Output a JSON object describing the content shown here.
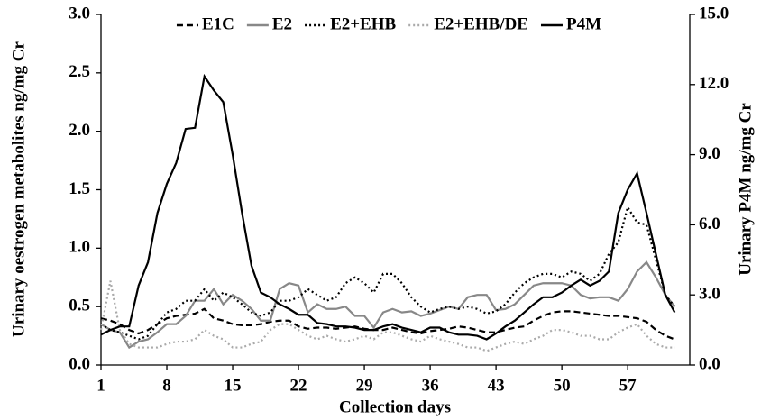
{
  "chart_data": {
    "type": "line",
    "x": [
      1,
      2,
      3,
      4,
      5,
      6,
      7,
      8,
      9,
      10,
      11,
      12,
      13,
      14,
      15,
      16,
      17,
      18,
      19,
      20,
      21,
      22,
      23,
      24,
      25,
      26,
      27,
      28,
      29,
      30,
      31,
      32,
      33,
      34,
      35,
      36,
      37,
      38,
      39,
      40,
      41,
      42,
      43,
      44,
      45,
      46,
      47,
      48,
      49,
      50,
      51,
      52,
      53,
      54,
      55,
      56,
      57,
      58,
      59,
      60,
      61,
      62
    ],
    "xlabel": "Collection days",
    "ylabel": "Urinary oestrogen metabolites ng/mg Cr",
    "y2label": "Urinary P4M ng/mg Cr",
    "xlim": [
      1,
      63.6
    ],
    "xticks": [
      1,
      8,
      15,
      22,
      29,
      36,
      43,
      50,
      57
    ],
    "ylim": [
      0,
      3
    ],
    "yticks": [
      {
        "value": 0,
        "label": "0.0"
      },
      {
        "value": 0.5,
        "label": "0.5"
      },
      {
        "value": 1,
        "label": "1.0"
      },
      {
        "value": 1.5,
        "label": "1.5"
      },
      {
        "value": 2,
        "label": "2.0"
      },
      {
        "value": 2.5,
        "label": "2.5"
      },
      {
        "value": 3,
        "label": "3.0"
      }
    ],
    "y2lim": [
      0,
      15
    ],
    "y2ticks": [
      {
        "value": 0,
        "label": "0.0"
      },
      {
        "value": 3,
        "label": "3.0"
      },
      {
        "value": 6,
        "label": "6.0"
      },
      {
        "value": 9,
        "label": "9.0"
      },
      {
        "value": 12,
        "label": "12.0"
      },
      {
        "value": 15,
        "label": "15.0"
      }
    ],
    "legend": "top",
    "series": [
      {
        "name": "E1C",
        "color": "#000000",
        "dash": "dashed",
        "values": [
          0.4,
          0.38,
          0.35,
          0.3,
          0.27,
          0.3,
          0.35,
          0.4,
          0.42,
          0.43,
          0.44,
          0.48,
          0.4,
          0.38,
          0.35,
          0.34,
          0.34,
          0.35,
          0.37,
          0.38,
          0.38,
          0.33,
          0.31,
          0.32,
          0.32,
          0.31,
          0.32,
          0.33,
          0.31,
          0.3,
          0.3,
          0.32,
          0.3,
          0.28,
          0.27,
          0.29,
          0.3,
          0.31,
          0.33,
          0.32,
          0.3,
          0.28,
          0.28,
          0.3,
          0.32,
          0.33,
          0.38,
          0.42,
          0.45,
          0.46,
          0.46,
          0.45,
          0.44,
          0.43,
          0.42,
          0.42,
          0.41,
          0.4,
          0.37,
          0.3,
          0.25,
          0.22
        ]
      },
      {
        "name": "E2",
        "color": "#888888",
        "dash": "solid",
        "values": [
          0.35,
          0.3,
          0.28,
          0.15,
          0.2,
          0.22,
          0.28,
          0.35,
          0.35,
          0.42,
          0.55,
          0.55,
          0.65,
          0.52,
          0.6,
          0.55,
          0.48,
          0.38,
          0.38,
          0.65,
          0.7,
          0.68,
          0.45,
          0.52,
          0.48,
          0.48,
          0.5,
          0.42,
          0.42,
          0.32,
          0.45,
          0.48,
          0.45,
          0.46,
          0.42,
          0.44,
          0.47,
          0.5,
          0.48,
          0.58,
          0.6,
          0.6,
          0.47,
          0.48,
          0.52,
          0.6,
          0.68,
          0.7,
          0.7,
          0.7,
          0.68,
          0.6,
          0.57,
          0.58,
          0.58,
          0.55,
          0.65,
          0.8,
          0.88,
          0.75,
          0.6,
          0.5
        ]
      },
      {
        "name": "E2+EHB",
        "color": "#000000",
        "dash": "dotted",
        "values": [
          0.35,
          0.3,
          0.28,
          0.25,
          0.22,
          0.25,
          0.35,
          0.45,
          0.48,
          0.55,
          0.55,
          0.65,
          0.55,
          0.62,
          0.58,
          0.52,
          0.45,
          0.42,
          0.45,
          0.55,
          0.55,
          0.58,
          0.65,
          0.6,
          0.55,
          0.58,
          0.7,
          0.75,
          0.7,
          0.62,
          0.78,
          0.78,
          0.7,
          0.58,
          0.5,
          0.45,
          0.48,
          0.5,
          0.48,
          0.5,
          0.48,
          0.44,
          0.46,
          0.52,
          0.62,
          0.7,
          0.75,
          0.78,
          0.78,
          0.75,
          0.8,
          0.78,
          0.72,
          0.78,
          0.95,
          1.05,
          1.35,
          1.22,
          1.2,
          0.9,
          0.6,
          0.5
        ]
      },
      {
        "name": "E2+EHB/DE",
        "color": "#aaaaaa",
        "dash": "dotted",
        "values": [
          0.3,
          0.72,
          0.3,
          0.18,
          0.15,
          0.15,
          0.15,
          0.18,
          0.2,
          0.2,
          0.22,
          0.3,
          0.25,
          0.22,
          0.15,
          0.15,
          0.18,
          0.2,
          0.3,
          0.35,
          0.35,
          0.3,
          0.25,
          0.22,
          0.25,
          0.22,
          0.2,
          0.22,
          0.25,
          0.22,
          0.28,
          0.28,
          0.25,
          0.22,
          0.2,
          0.25,
          0.22,
          0.2,
          0.18,
          0.15,
          0.15,
          0.12,
          0.15,
          0.18,
          0.2,
          0.18,
          0.22,
          0.25,
          0.3,
          0.3,
          0.28,
          0.25,
          0.25,
          0.22,
          0.22,
          0.28,
          0.32,
          0.35,
          0.25,
          0.18,
          0.15,
          0.15
        ]
      },
      {
        "name": "P4M",
        "color": "#000000",
        "dash": "solid",
        "axis": "y2",
        "values": [
          1.3,
          1.5,
          1.65,
          1.65,
          3.4,
          4.4,
          6.5,
          7.75,
          8.65,
          10.1,
          10.15,
          12.35,
          11.75,
          11.25,
          9,
          6.5,
          4.25,
          3.1,
          2.9,
          2.6,
          2.4,
          2.15,
          2.15,
          1.8,
          1.75,
          1.65,
          1.65,
          1.6,
          1.5,
          1.5,
          1.65,
          1.75,
          1.6,
          1.5,
          1.4,
          1.6,
          1.6,
          1.4,
          1.3,
          1.3,
          1.25,
          1.1,
          1.35,
          1.65,
          1.9,
          2.25,
          2.6,
          2.9,
          2.9,
          3.1,
          3.4,
          3.65,
          3.4,
          3.6,
          4,
          6.5,
          7.5,
          8.2,
          6.5,
          4.75,
          3,
          2.25
        ]
      }
    ]
  }
}
